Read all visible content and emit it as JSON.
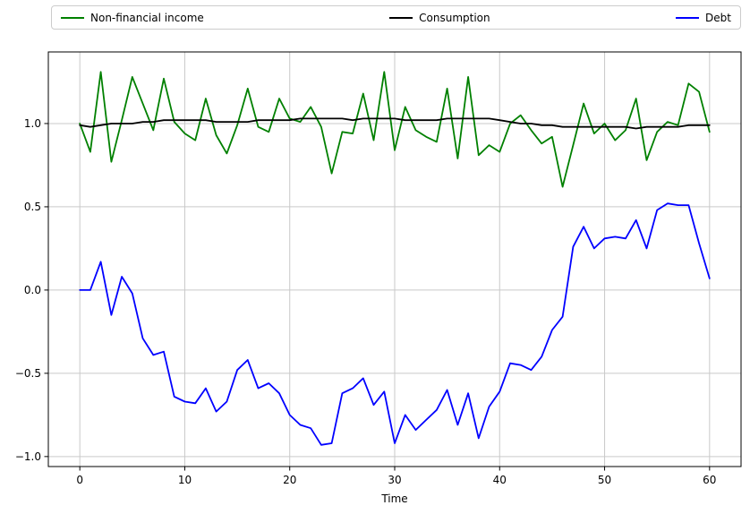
{
  "chart_data": {
    "type": "line",
    "title": "",
    "xlabel": "Time",
    "ylabel": "",
    "grid": true,
    "legend_position": "top-horizontal",
    "xlim": [
      -3,
      63
    ],
    "ylim": [
      -1.06,
      1.43
    ],
    "xticks": [
      0,
      10,
      20,
      30,
      40,
      50,
      60
    ],
    "xtick_labels": [
      "0",
      "10",
      "20",
      "30",
      "40",
      "50",
      "60"
    ],
    "yticks": [
      -1.0,
      -0.5,
      0.0,
      0.5,
      1.0
    ],
    "ytick_labels": [
      "−1.0",
      "−0.5",
      "0.0",
      "0.5",
      "1.0"
    ],
    "grid_color": "#c9c9c9",
    "spine_color": "#000000",
    "x": [
      0,
      1,
      2,
      3,
      4,
      5,
      6,
      7,
      8,
      9,
      10,
      11,
      12,
      13,
      14,
      15,
      16,
      17,
      18,
      19,
      20,
      21,
      22,
      23,
      24,
      25,
      26,
      27,
      28,
      29,
      30,
      31,
      32,
      33,
      34,
      35,
      36,
      37,
      38,
      39,
      40,
      41,
      42,
      43,
      44,
      45,
      46,
      47,
      48,
      49,
      50,
      51,
      52,
      53,
      54,
      55,
      56,
      57,
      58,
      59,
      60
    ],
    "series": [
      {
        "name": "Non-financial income",
        "color": "#008000",
        "values": [
          1.0,
          0.83,
          1.31,
          0.77,
          1.02,
          1.28,
          1.12,
          0.96,
          1.27,
          1.01,
          0.94,
          0.9,
          1.15,
          0.93,
          0.82,
          0.99,
          1.21,
          0.98,
          0.95,
          1.15,
          1.03,
          1.01,
          1.1,
          0.98,
          0.7,
          0.95,
          0.94,
          1.18,
          0.9,
          1.31,
          0.84,
          1.1,
          0.96,
          0.92,
          0.89,
          1.21,
          0.79,
          1.28,
          0.81,
          0.87,
          0.83,
          1.0,
          1.05,
          0.96,
          0.88,
          0.92,
          0.62,
          0.87,
          1.12,
          0.94,
          1.0,
          0.9,
          0.96,
          1.15,
          0.78,
          0.95,
          1.01,
          0.99,
          1.24,
          1.19,
          0.95
        ]
      },
      {
        "name": "Consumption",
        "color": "#000000",
        "values": [
          0.99,
          0.98,
          0.99,
          1.0,
          1.0,
          1.0,
          1.01,
          1.01,
          1.02,
          1.02,
          1.02,
          1.02,
          1.02,
          1.01,
          1.01,
          1.01,
          1.01,
          1.02,
          1.02,
          1.02,
          1.02,
          1.03,
          1.03,
          1.03,
          1.03,
          1.03,
          1.02,
          1.03,
          1.03,
          1.03,
          1.03,
          1.02,
          1.02,
          1.02,
          1.02,
          1.03,
          1.03,
          1.03,
          1.03,
          1.03,
          1.02,
          1.01,
          1.0,
          1.0,
          0.99,
          0.99,
          0.98,
          0.98,
          0.98,
          0.98,
          0.98,
          0.98,
          0.98,
          0.97,
          0.98,
          0.98,
          0.98,
          0.98,
          0.99,
          0.99,
          0.99
        ]
      },
      {
        "name": "Debt",
        "color": "#0000ff",
        "values": [
          0.0,
          0.0,
          0.17,
          -0.15,
          0.08,
          -0.02,
          -0.29,
          -0.39,
          -0.37,
          -0.64,
          -0.67,
          -0.68,
          -0.59,
          -0.73,
          -0.67,
          -0.48,
          -0.42,
          -0.59,
          -0.56,
          -0.62,
          -0.75,
          -0.81,
          -0.83,
          -0.93,
          -0.92,
          -0.62,
          -0.59,
          -0.53,
          -0.69,
          -0.61,
          -0.92,
          -0.75,
          -0.84,
          -0.78,
          -0.72,
          -0.6,
          -0.81,
          -0.62,
          -0.89,
          -0.7,
          -0.61,
          -0.44,
          -0.45,
          -0.48,
          -0.4,
          -0.24,
          -0.16,
          0.26,
          0.38,
          0.25,
          0.31,
          0.32,
          0.31,
          0.42,
          0.25,
          0.48,
          0.52,
          0.51,
          0.51,
          0.28,
          0.07
        ]
      }
    ]
  }
}
